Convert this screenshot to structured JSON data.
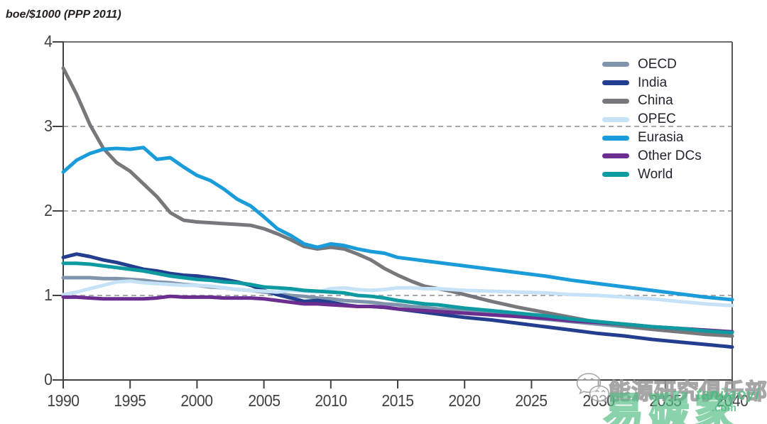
{
  "header": {
    "unit_title": "boe/$1000 (PPP 2011)"
  },
  "axes": {
    "x_tick_labels": [
      "1990",
      "1995",
      "2000",
      "2005",
      "2010",
      "2015",
      "2020",
      "2025",
      "2030",
      "2035",
      "2040"
    ],
    "y_tick_labels": [
      "4",
      "3",
      "2",
      "1",
      "0"
    ],
    "axis_color": "#414042",
    "grid_dash_color": "#a7a9ac",
    "top_line_color": "#6d6e71"
  },
  "chart_data": {
    "type": "line",
    "title": "",
    "ylabel": "boe/$1000 (PPP 2011)",
    "xlabel": "",
    "xlim": [
      1990,
      2040
    ],
    "ylim": [
      0,
      4
    ],
    "x_ticks": [
      1990,
      1995,
      2000,
      2005,
      2010,
      2015,
      2020,
      2025,
      2030,
      2035,
      2040
    ],
    "y_ticks": [
      0,
      1,
      2,
      3,
      4
    ],
    "grid": "horizontal dashed gridlines at y=1,2,3; solid frame line at y=4 and y=0; right border",
    "legend_position": "top-right",
    "x": [
      1990,
      1991,
      1992,
      1993,
      1994,
      1995,
      1996,
      1997,
      1998,
      1999,
      2000,
      2001,
      2002,
      2003,
      2004,
      2005,
      2006,
      2007,
      2008,
      2009,
      2010,
      2011,
      2012,
      2013,
      2014,
      2015,
      2016,
      2017,
      2018,
      2019,
      2020,
      2022,
      2024,
      2026,
      2028,
      2030,
      2032,
      2034,
      2036,
      2038,
      2040
    ],
    "series": [
      {
        "name": "OECD",
        "color": "#8094ac",
        "values": [
          1.21,
          1.21,
          1.21,
          1.2,
          1.2,
          1.19,
          1.18,
          1.16,
          1.15,
          1.13,
          1.12,
          1.1,
          1.09,
          1.07,
          1.06,
          1.04,
          1.02,
          1.0,
          0.99,
          0.97,
          0.96,
          0.94,
          0.93,
          0.92,
          0.9,
          0.89,
          0.87,
          0.86,
          0.84,
          0.83,
          0.81,
          0.78,
          0.75,
          0.72,
          0.69,
          0.66,
          0.63,
          0.6,
          0.57,
          0.55,
          0.52
        ]
      },
      {
        "name": "India",
        "color": "#233e8f",
        "values": [
          1.45,
          1.49,
          1.46,
          1.42,
          1.39,
          1.35,
          1.31,
          1.29,
          1.26,
          1.24,
          1.23,
          1.21,
          1.19,
          1.16,
          1.12,
          1.06,
          1.01,
          0.97,
          0.93,
          0.94,
          0.92,
          0.89,
          0.87,
          0.87,
          0.86,
          0.84,
          0.82,
          0.8,
          0.78,
          0.76,
          0.74,
          0.71,
          0.67,
          0.63,
          0.59,
          0.55,
          0.52,
          0.48,
          0.45,
          0.42,
          0.39
        ]
      },
      {
        "name": "China",
        "color": "#77787b",
        "values": [
          3.69,
          3.38,
          3.02,
          2.74,
          2.57,
          2.47,
          2.32,
          2.17,
          1.98,
          1.89,
          1.87,
          1.86,
          1.85,
          1.84,
          1.83,
          1.79,
          1.73,
          1.66,
          1.58,
          1.55,
          1.57,
          1.55,
          1.49,
          1.42,
          1.32,
          1.24,
          1.17,
          1.11,
          1.08,
          1.05,
          1.01,
          0.93,
          0.86,
          0.8,
          0.74,
          0.68,
          0.64,
          0.6,
          0.57,
          0.54,
          0.52
        ]
      },
      {
        "name": "OPEC",
        "color": "#c6e2f6",
        "values": [
          1.01,
          1.04,
          1.08,
          1.12,
          1.16,
          1.17,
          1.15,
          1.14,
          1.13,
          1.12,
          1.12,
          1.11,
          1.09,
          1.07,
          1.06,
          1.05,
          1.04,
          1.06,
          1.05,
          1.04,
          1.08,
          1.09,
          1.07,
          1.06,
          1.07,
          1.09,
          1.09,
          1.08,
          1.08,
          1.07,
          1.06,
          1.05,
          1.04,
          1.03,
          1.01,
          1.0,
          0.98,
          0.96,
          0.93,
          0.9,
          0.88
        ]
      },
      {
        "name": "Eurasia",
        "color": "#199cd9",
        "values": [
          2.46,
          2.6,
          2.68,
          2.73,
          2.74,
          2.73,
          2.75,
          2.61,
          2.63,
          2.52,
          2.42,
          2.36,
          2.26,
          2.14,
          2.06,
          1.93,
          1.79,
          1.71,
          1.61,
          1.57,
          1.61,
          1.59,
          1.55,
          1.52,
          1.5,
          1.45,
          1.43,
          1.41,
          1.39,
          1.37,
          1.35,
          1.31,
          1.27,
          1.23,
          1.18,
          1.14,
          1.1,
          1.06,
          1.02,
          0.98,
          0.95
        ]
      },
      {
        "name": "Other DCs",
        "color": "#6b2d90",
        "values": [
          0.98,
          0.98,
          0.97,
          0.96,
          0.96,
          0.96,
          0.96,
          0.97,
          0.99,
          0.98,
          0.98,
          0.98,
          0.97,
          0.97,
          0.97,
          0.96,
          0.94,
          0.92,
          0.9,
          0.9,
          0.89,
          0.88,
          0.87,
          0.87,
          0.86,
          0.84,
          0.83,
          0.82,
          0.81,
          0.8,
          0.79,
          0.77,
          0.75,
          0.73,
          0.7,
          0.68,
          0.66,
          0.63,
          0.61,
          0.59,
          0.57
        ]
      },
      {
        "name": "World",
        "color": "#0d9aa0",
        "values": [
          1.38,
          1.38,
          1.37,
          1.35,
          1.33,
          1.31,
          1.29,
          1.26,
          1.23,
          1.21,
          1.19,
          1.18,
          1.16,
          1.15,
          1.13,
          1.1,
          1.09,
          1.08,
          1.06,
          1.05,
          1.04,
          1.03,
          1.0,
          0.99,
          0.97,
          0.94,
          0.92,
          0.9,
          0.89,
          0.87,
          0.85,
          0.82,
          0.79,
          0.76,
          0.72,
          0.69,
          0.66,
          0.63,
          0.61,
          0.58,
          0.56
        ]
      }
    ]
  },
  "legend": {
    "items": [
      {
        "label": "OECD",
        "color": "#8094ac"
      },
      {
        "label": "India",
        "color": "#233e8f"
      },
      {
        "label": "China",
        "color": "#77787b"
      },
      {
        "label": "OPEC",
        "color": "#c6e2f6"
      },
      {
        "label": "Eurasia",
        "color": "#199cd9"
      },
      {
        "label": "Other DCs",
        "color": "#6b2d90"
      },
      {
        "label": "World",
        "color": "#0d9aa0"
      }
    ]
  },
  "watermark": {
    "cn_gray_text": "能源研究俱乐部",
    "cn_green_text": "易碳家",
    "latin_text": "tanjiaoyi",
    "latin_suffix": ".com",
    "green_color": "#4cba80",
    "gray_color": "#969698",
    "icon": "wechat-icon"
  }
}
